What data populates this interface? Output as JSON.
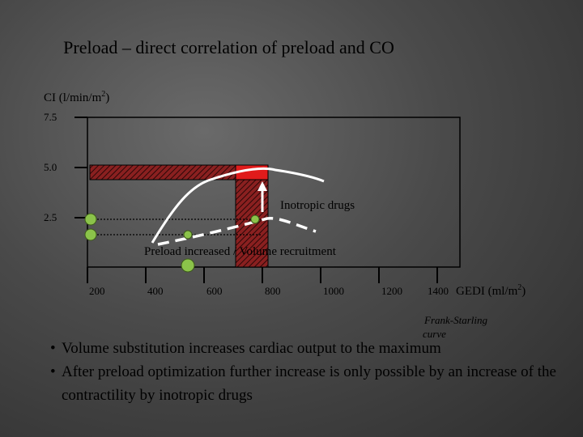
{
  "slide": {
    "title": "Preload – direct correlation of preload and CO",
    "bullets": [
      "Volume substitution increases cardiac output to the maximum",
      "After preload optimization further increase is only possible by an increase of the contractility by inotropic drugs"
    ]
  },
  "chart": {
    "ylabel_base": "CI (l/min/m",
    "ylabel_sup": "2",
    "ylabel_end": ")",
    "xlabel_base": "GEDI (ml/m",
    "xlabel_sup": "2",
    "xlabel_end": ")",
    "y_ticks": [
      "7.5",
      "5.0",
      "2.5"
    ],
    "x_ticks": [
      "200",
      "400",
      "600",
      "800",
      "1000",
      "1200",
      "1400"
    ],
    "annotation_inotropic": "Inotropic drugs",
    "annotation_preload": "Preload increased / Volume recruitment",
    "curve_label_line1": "Frank-Starling",
    "curve_label_line2": "curve",
    "colors": {
      "green": "#8bc34a",
      "red": "#e01b1b",
      "hatch_dark": "#4a1010"
    }
  }
}
